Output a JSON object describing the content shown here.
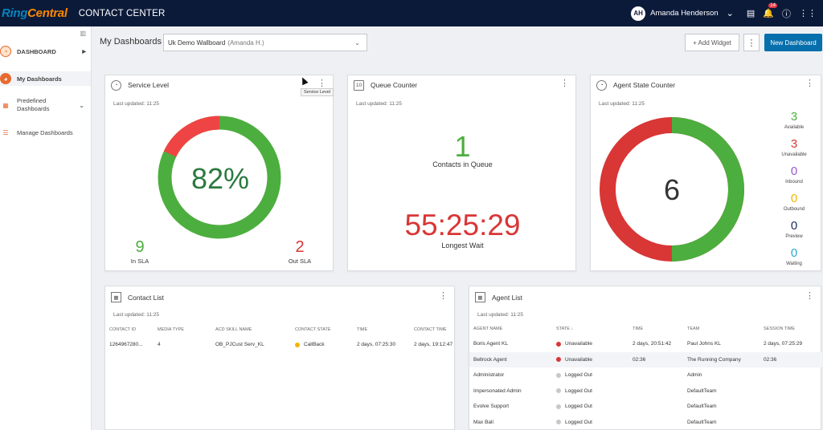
{
  "app": {
    "logo_ring": "Ring",
    "logo_central": "Central",
    "name": "CONTACT CENTER"
  },
  "user": {
    "initials": "AH",
    "name": "Amanda Henderson",
    "notif_count": "14"
  },
  "sidebar": {
    "items": [
      {
        "label": "DASHBOARD"
      },
      {
        "label": "My Dashboards"
      },
      {
        "label": "Predefined Dashboards"
      },
      {
        "label": "Manage Dashboards"
      }
    ]
  },
  "header": {
    "title": "My Dashboards",
    "dashboard_name": "Uk Demo Wallboard",
    "dashboard_owner": "(Amanda H.)",
    "add_widget": "+ Add Widget",
    "new_dashboard": "New Dashboard"
  },
  "service_level": {
    "title": "Service Level",
    "updated": "Last updated: 11:25",
    "percent": "82%",
    "in_sla_count": "9",
    "in_sla_label": "In SLA",
    "out_sla_count": "2",
    "out_sla_label": "Out SLA",
    "tooltip": "Service Level",
    "in_fraction": 0.82
  },
  "queue_counter": {
    "title": "Queue Counter",
    "updated": "Last updated: 11:25",
    "count": "1",
    "count_label": "Contacts in Queue",
    "wait": "55:25:29",
    "wait_label": "Longest Wait"
  },
  "agent_state": {
    "title": "Agent State Counter",
    "updated": "Last updated: 11:25",
    "total": "6",
    "states": [
      {
        "count": "3",
        "label": "Available",
        "color": "#4cae3e"
      },
      {
        "count": "3",
        "label": "Unavailable",
        "color": "#d93636"
      },
      {
        "count": "0",
        "label": "Inbound",
        "color": "#9b59d0"
      },
      {
        "count": "0",
        "label": "Outbound",
        "color": "#f2b600"
      },
      {
        "count": "0",
        "label": "Preview",
        "color": "#1c2d5a"
      },
      {
        "count": "0",
        "label": "Waiting",
        "color": "#2aa7c8"
      }
    ]
  },
  "contact_list": {
    "title": "Contact List",
    "updated": "Last updated: 11:25",
    "columns": [
      "CONTACT ID",
      "MEDIA TYPE",
      "ACD SKILL NAME",
      "CONTACT STATE",
      "TIME",
      "CONTACT TIME"
    ],
    "rows": [
      [
        "1264967280...",
        "4",
        "OB_PJCust Serv_KL",
        "CallBack",
        "2 days, 07:25:30",
        "2 days, 19:12:47"
      ]
    ]
  },
  "agent_list": {
    "title": "Agent List",
    "updated": "Last updated: 11:25",
    "columns": [
      "AGENT NAME",
      "STATE",
      "TIME",
      "TEAM",
      "SESSION TIME"
    ],
    "rows": [
      [
        "Boris Agent KL",
        "Unavailable",
        "2 days, 20:51:42",
        "Paul Johns KL",
        "2 days, 07:25:29"
      ],
      [
        "Bellrock Agent",
        "Unavailable",
        "02:36",
        "The Running Company",
        "02:36"
      ],
      [
        "Administrator",
        "Logged Out",
        "",
        "Admin",
        ""
      ],
      [
        "Impersonated Admin",
        "Logged Out",
        "",
        "DefaultTeam",
        ""
      ],
      [
        "Evolve Support",
        "Logged Out",
        "",
        "DefaultTeam",
        ""
      ],
      [
        "Max Ball",
        "Logged Out",
        "",
        "DefaultTeam",
        ""
      ]
    ]
  },
  "colors": {
    "brand_blue": "#066fac",
    "topbar": "#0c1a3a",
    "green": "#4cae3e",
    "red": "#d93636",
    "callback_dot": "#f0b400",
    "unavailable_dot": "#d93636",
    "logged_out_dot": "#c8c8c8"
  }
}
